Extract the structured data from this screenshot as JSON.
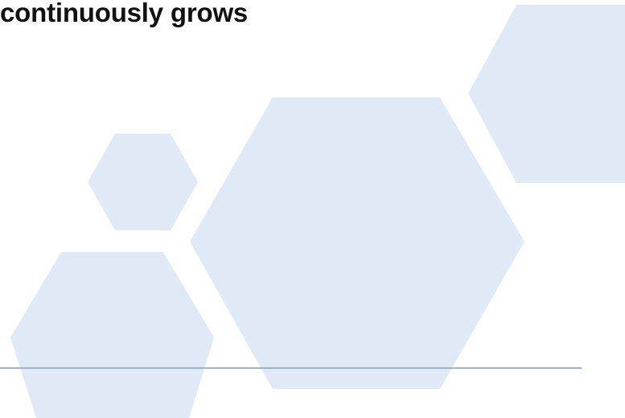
{
  "slide": {
    "title": "continuously grows",
    "accent_color": "#e0eaf6",
    "divider_color": "#9fb3c8"
  }
}
